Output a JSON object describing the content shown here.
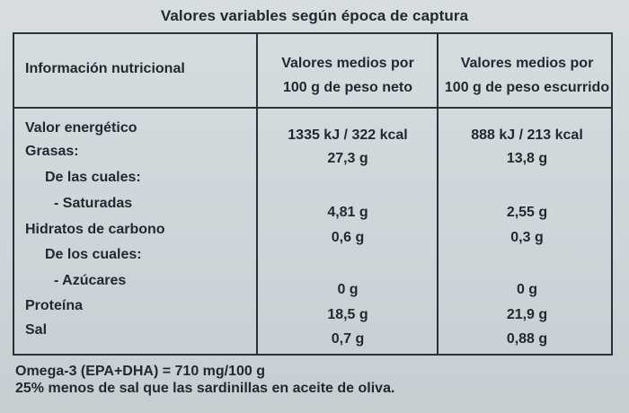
{
  "heading": "Valores variables según época de captura",
  "table": {
    "header": {
      "label": "Información nutricional",
      "col1": [
        "Valores medios por",
        "100 g de peso neto"
      ],
      "col2": [
        "Valores medios por",
        "100 g de peso escurrido"
      ]
    },
    "rows": [
      {
        "label": "Valor energético",
        "col1": "1335 kJ / 322 kcal",
        "col2": "888 kJ / 213 kcal"
      },
      {
        "label": "Grasas:",
        "col1": "27,3 g",
        "col2": "13,8 g"
      },
      {
        "label": "De las cuales:",
        "col1": "",
        "col2": ""
      },
      {
        "label": "- Saturadas",
        "col1": "4,81 g",
        "col2": "2,55 g"
      },
      {
        "label": "Hidratos de carbono",
        "col1": "0,6 g",
        "col2": "0,3 g"
      },
      {
        "label": "De los cuales:",
        "col1": "",
        "col2": ""
      },
      {
        "label": "- Azúcares",
        "col1": "0 g",
        "col2": "0 g"
      },
      {
        "label": "Proteína",
        "col1": "18,5 g",
        "col2": "21,9 g"
      },
      {
        "label": "Sal",
        "col1": "0,7 g",
        "col2": "0,88 g"
      }
    ]
  },
  "footer": {
    "line1": "Omega-3 (EPA+DHA) = 710 mg/100 g",
    "line2": "25% menos de sal que las sardinillas en aceite de oliva."
  }
}
